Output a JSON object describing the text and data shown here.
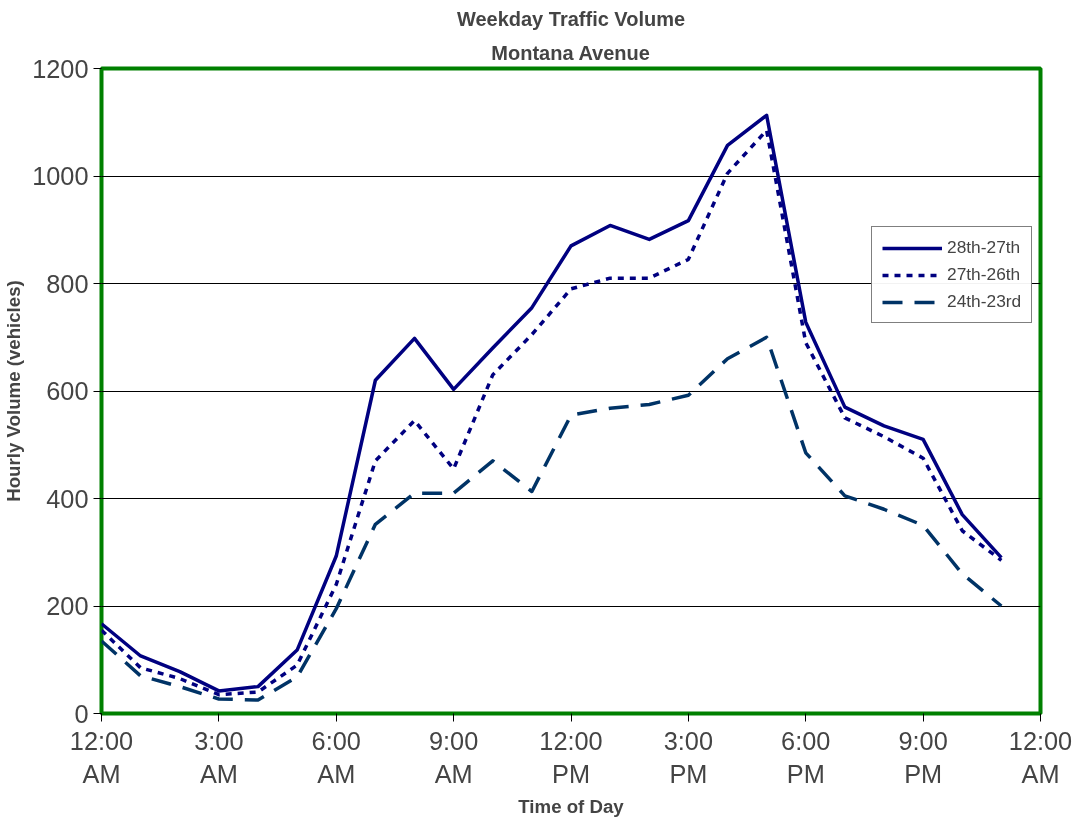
{
  "chart_data": {
    "type": "line",
    "title": "Weekday Traffic Volume",
    "subtitle": "Montana Avenue",
    "xlabel": "Time of Day",
    "ylabel": "Hourly Volume (vehicles)",
    "x": [
      0,
      1,
      2,
      3,
      4,
      5,
      6,
      7,
      8,
      9,
      10,
      11,
      12,
      13,
      14,
      15,
      16,
      17,
      18,
      19,
      20,
      21,
      22,
      23
    ],
    "xlim": [
      0,
      24
    ],
    "xticks": [
      {
        "value": 0,
        "label": "12:00 AM"
      },
      {
        "value": 3,
        "label": "3:00 AM"
      },
      {
        "value": 6,
        "label": "6:00 AM"
      },
      {
        "value": 9,
        "label": "9:00 AM"
      },
      {
        "value": 12,
        "label": "12:00 PM"
      },
      {
        "value": 15,
        "label": "3:00 PM"
      },
      {
        "value": 18,
        "label": "6:00 PM"
      },
      {
        "value": 21,
        "label": "9:00 PM"
      },
      {
        "value": 24,
        "label": "12:00 AM"
      }
    ],
    "ylim": [
      0,
      1200
    ],
    "yticks": [
      0,
      200,
      400,
      600,
      800,
      1000,
      1200
    ],
    "grid": "y",
    "legend": "right",
    "marker": "none",
    "series": [
      {
        "name": "28th-27th",
        "color": "#000080",
        "line_style": "solid",
        "values": [
          167,
          107,
          78,
          42,
          50,
          118,
          293,
          620,
          698,
          603,
          680,
          755,
          870,
          908,
          882,
          917,
          1057,
          1113,
          728,
          570,
          535,
          510,
          370,
          290
        ]
      },
      {
        "name": "27th-26th",
        "color": "#000080",
        "line_style": "dotted",
        "values": [
          155,
          85,
          65,
          35,
          40,
          90,
          240,
          470,
          545,
          455,
          630,
          705,
          790,
          810,
          810,
          845,
          1005,
          1085,
          690,
          550,
          515,
          475,
          340,
          285
        ]
      },
      {
        "name": "24th-23rd",
        "color": "#003366",
        "line_style": "dashed",
        "values": [
          135,
          70,
          50,
          27,
          25,
          68,
          195,
          352,
          410,
          410,
          470,
          413,
          555,
          568,
          575,
          592,
          660,
          700,
          485,
          405,
          380,
          350,
          260,
          200
        ]
      }
    ]
  }
}
